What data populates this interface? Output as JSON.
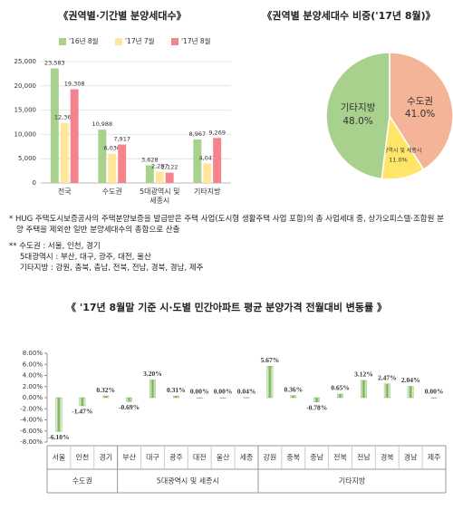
{
  "chart_data": [
    {
      "type": "bar",
      "title": "《권역별·기간별 분양세대수》",
      "categories": [
        "전국",
        "수도권",
        "5대광역시 및 세종시",
        "기타지방"
      ],
      "series": [
        {
          "name": "'16년 8월",
          "color": "#a9d18e",
          "values": [
            23583,
            10988,
            3628,
            8967
          ],
          "value_labels": [
            "23,583",
            "10,988",
            "3,628",
            "8,967"
          ]
        },
        {
          "name": "'17년 7월",
          "color": "#ffe699",
          "values": [
            12364,
            6030,
            2287,
            4047
          ],
          "value_labels": [
            "12,364",
            "6,030",
            "2,287",
            "4,047"
          ]
        },
        {
          "name": "'17년 8월",
          "color": "#f4838b",
          "values": [
            19308,
            7917,
            2122,
            9269
          ],
          "value_labels": [
            "19,308",
            "7,917",
            "2,122",
            "9,269"
          ]
        }
      ],
      "ylim": [
        0,
        25000
      ],
      "yticks": [
        0,
        {
          "value": 5000,
          "label": "5,000"
        },
        {
          "value": 10000,
          "label": "10,000"
        },
        {
          "value": 15000,
          "label": "15,000"
        },
        {
          "value": 20000,
          "label": "20,000"
        },
        {
          "value": 25000,
          "label": "25,000"
        }
      ],
      "grid": true,
      "legend": "top"
    },
    {
      "type": "pie",
      "title": "《권역별 분양세대수 비중('17년 8월)》",
      "categories": [
        "수도권",
        "5대광역시 및 세종시",
        "기타지방"
      ],
      "values": [
        41.0,
        11.0,
        48.0
      ],
      "value_labels": [
        "41.0%",
        "11.0%",
        "48.0%"
      ],
      "colors": [
        "#f4b497",
        "#ffe66b",
        "#a9d18e"
      ]
    },
    {
      "type": "bar",
      "title": "《 '17년 8월말 기준 시·도별 민간아파트 평균 분양가격 전월대비 변동률 》",
      "categories": [
        "서울",
        "인천",
        "경기",
        "부산",
        "대구",
        "광주",
        "대전",
        "울산",
        "세종",
        "강원",
        "충북",
        "충남",
        "전북",
        "전남",
        "경북",
        "경남",
        "제주"
      ],
      "values": [
        -6.1,
        -1.47,
        0.32,
        -0.69,
        3.2,
        0.31,
        0.0,
        0.0,
        0.04,
        5.67,
        0.36,
        -0.78,
        0.65,
        3.12,
        2.47,
        2.04,
        0.0
      ],
      "value_labels": [
        "-6.10%",
        "-1.47%",
        "0.32%",
        "-0.69%",
        "3.20%",
        "0.31%",
        "0.00%",
        "0.00%",
        "0.04%",
        "5.67%",
        "0.36%",
        "-0.78%",
        "0.65%",
        "3.12%",
        "2.47%",
        "2.04%",
        "0.00%"
      ],
      "color": "#70ad47",
      "ylim": [
        -8,
        8
      ],
      "yticks": [
        {
          "value": -8,
          "label": "-8.00%"
        },
        {
          "value": -6,
          "label": "-6.00%"
        },
        {
          "value": -4,
          "label": "-4.00%"
        },
        {
          "value": -2,
          "label": "-2.00%"
        },
        {
          "value": 0,
          "label": "0.00%"
        },
        {
          "value": 2,
          "label": "2.00%"
        },
        {
          "value": 4,
          "label": "4.00%"
        },
        {
          "value": 6,
          "label": "6.00%"
        },
        {
          "value": 8,
          "label": "8.00%"
        }
      ],
      "groups": [
        {
          "name": "수도권",
          "categories": [
            "서울",
            "인천",
            "경기"
          ]
        },
        {
          "name": "5대광역시 및 세종시",
          "categories": [
            "부산",
            "대구",
            "광주",
            "대전",
            "울산",
            "세종"
          ]
        },
        {
          "name": "기타지방",
          "categories": [
            "강원",
            "충북",
            "충남",
            "전북",
            "전남",
            "경북",
            "경남",
            "제주"
          ]
        }
      ]
    }
  ],
  "notes": [
    "* HUG 주택도시보증공사의 주택분양보증을 발급받은 주택 사업(도시형 생활주택 사업 포함)의 총 사업세대 중, 상가오피스텔·조합원 분양 주택을 제외한 일반 분양세대수의 총합으로 산출",
    "** 수도권 : 서울, 인천, 경기",
    "5대광역시 : 부산, 대구, 광주, 대전, 울산",
    "기타지방 : 강원, 충북, 충남, 전북, 전남, 경북, 경남, 제주"
  ]
}
